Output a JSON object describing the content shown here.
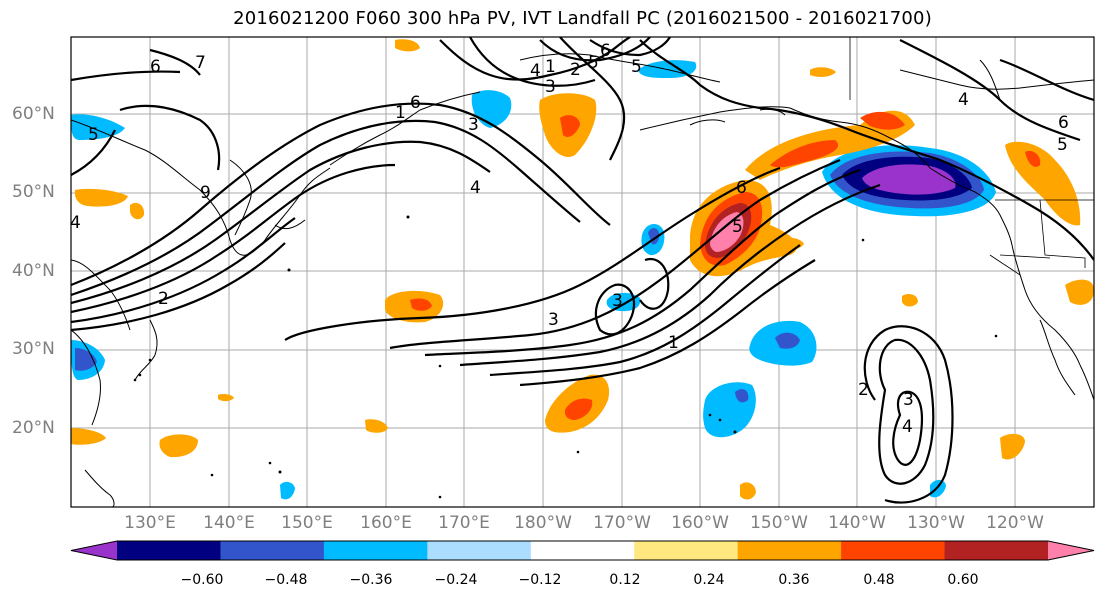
{
  "title": "2016021200 F060 300 hPa PV, IVT Landfall PC (2016021500 - 2016021700)",
  "lat_labels": [
    "60°N",
    "50°N",
    "40°N",
    "30°N",
    "20°N"
  ],
  "lon_labels": [
    "130°E",
    "140°E",
    "150°E",
    "160°E",
    "170°E",
    "180°W",
    "170°W",
    "160°W",
    "150°W",
    "140°W",
    "130°W",
    "120°W"
  ],
  "colorbar": {
    "colors": [
      "#9933cc",
      "#000080",
      "#3355cc",
      "#00bbff",
      "#aaddff",
      "#ffffff",
      "#ffe880",
      "#ffa500",
      "#ff4400",
      "#b22222",
      "#ff80aa"
    ],
    "ticks": [
      "−0.60",
      "−0.48",
      "−0.36",
      "−0.24",
      "−0.12",
      "0.12",
      "0.24",
      "0.36",
      "0.48",
      "0.60"
    ]
  },
  "contour_labels": [
    "6",
    "5",
    "3",
    "4",
    "1",
    "2",
    "5",
    "6",
    "7",
    "9",
    "6",
    "3",
    "1",
    "4",
    "2",
    "3",
    "4",
    "5",
    "4",
    "5",
    "6",
    "6",
    "5",
    "3",
    "1",
    "2",
    "3",
    "4"
  ]
}
